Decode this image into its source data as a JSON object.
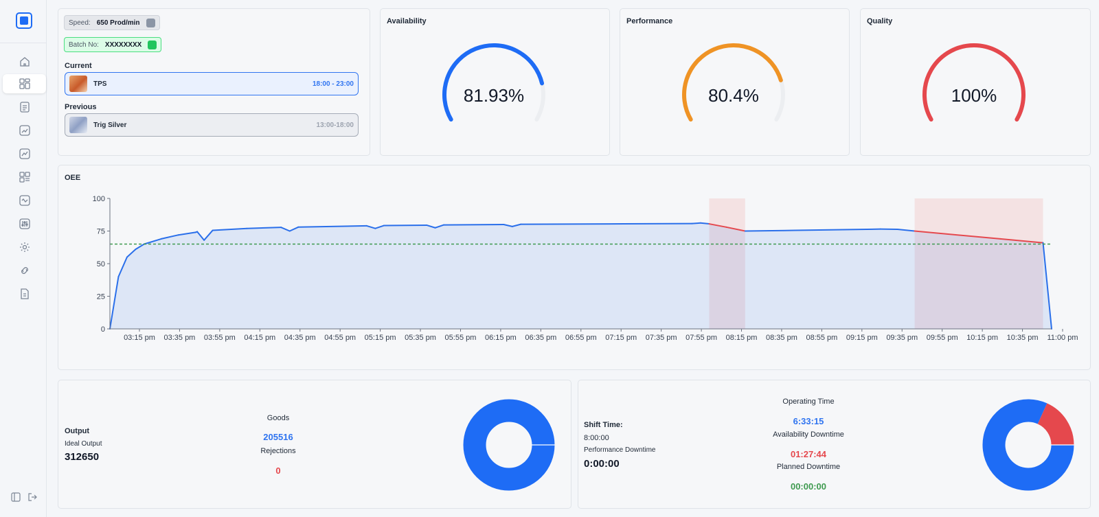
{
  "info": {
    "speed_label": "Speed:",
    "speed_value": "650 Prod/min",
    "batch_label": "Batch No:",
    "batch_value": "XXXXXXXX",
    "current_label": "Current",
    "current_product": "TPS",
    "current_time": "18:00 - 23:00",
    "previous_label": "Previous",
    "previous_product": "Trig Silver",
    "previous_time": "13:00-18:00"
  },
  "gauges": [
    {
      "title": "Availability",
      "value_text": "81.93%",
      "fraction": 0.8193,
      "color": "#1e6cf5"
    },
    {
      "title": "Performance",
      "value_text": "80.4%",
      "fraction": 0.804,
      "color": "#ef9325"
    },
    {
      "title": "Quality",
      "value_text": "100%",
      "fraction": 1.0,
      "color": "#e5484d"
    }
  ],
  "oee": {
    "title": "OEE"
  },
  "chart_data": {
    "type": "area",
    "title": "OEE",
    "ylim": [
      0,
      100
    ],
    "y_ticks": [
      "0",
      "25",
      "50",
      "75",
      "100"
    ],
    "x_tick_labels": [
      "03:15 pm",
      "03:35 pm",
      "03:55 pm",
      "04:15 pm",
      "04:35 pm",
      "04:55 pm",
      "05:15 pm",
      "05:35 pm",
      "05:55 pm",
      "06:15 pm",
      "06:35 pm",
      "06:55 pm",
      "07:15 pm",
      "07:35 pm",
      "07:55 pm",
      "08:15 pm",
      "08:35 pm",
      "08:55 pm",
      "09:15 pm",
      "09:35 pm",
      "09:55 pm",
      "10:15 pm",
      "10:35 pm",
      "11:00 pm"
    ],
    "target": 65,
    "series_color": "#2a6fea",
    "downtime_color": "#e5484d",
    "target_color": "#3e9a4f",
    "points": [
      [
        0,
        0
      ],
      [
        5,
        40
      ],
      [
        10,
        55
      ],
      [
        15,
        61
      ],
      [
        20,
        65
      ],
      [
        30,
        69
      ],
      [
        40,
        72
      ],
      [
        50,
        74
      ],
      [
        51,
        74.5
      ],
      [
        55,
        68
      ],
      [
        60,
        75.5
      ],
      [
        80,
        77
      ],
      [
        100,
        77.8
      ],
      [
        105,
        75
      ],
      [
        110,
        78
      ],
      [
        150,
        79
      ],
      [
        155,
        77
      ],
      [
        160,
        79.2
      ],
      [
        185,
        79.5
      ],
      [
        190,
        77.5
      ],
      [
        195,
        79.7
      ],
      [
        230,
        80
      ],
      [
        235,
        78.5
      ],
      [
        240,
        80.2
      ],
      [
        300,
        80.5
      ],
      [
        340,
        80.7
      ],
      [
        345,
        81.2
      ],
      [
        350,
        80.5
      ],
      [
        360,
        78
      ],
      [
        371,
        75
      ],
      [
        400,
        75.5
      ],
      [
        450,
        76.5
      ],
      [
        460,
        76.3
      ],
      [
        470,
        75
      ],
      [
        520,
        69
      ],
      [
        545,
        66
      ],
      [
        550,
        0
      ]
    ],
    "downtime_ranges": [
      [
        350,
        371
      ],
      [
        470,
        545
      ]
    ]
  },
  "output": {
    "title": "Output",
    "ideal_label": "Ideal Output",
    "ideal_value": "312650",
    "goods_label": "Goods",
    "goods_value": "205516",
    "rejections_label": "Rejections",
    "rejections_value": "0",
    "donut": [
      {
        "name": "Goods",
        "value": 205516,
        "color": "#1e6cf5"
      },
      {
        "name": "Rejections",
        "value": 0,
        "color": "#e5484d"
      }
    ]
  },
  "time": {
    "shift_label": "Shift Time:",
    "shift_value": "8:00:00",
    "perf_label": "Performance Downtime",
    "perf_value": "0:00:00",
    "op_label": "Operating Time",
    "op_value": "6:33:15",
    "avail_label": "Availability Downtime",
    "avail_value": "01:27:44",
    "planned_label": "Planned Downtime",
    "planned_value": "00:00:00",
    "donut": [
      {
        "name": "Operating Time",
        "value": 23595,
        "color": "#1e6cf5"
      },
      {
        "name": "Availability Downtime",
        "value": 5264,
        "color": "#e5484d"
      }
    ]
  }
}
